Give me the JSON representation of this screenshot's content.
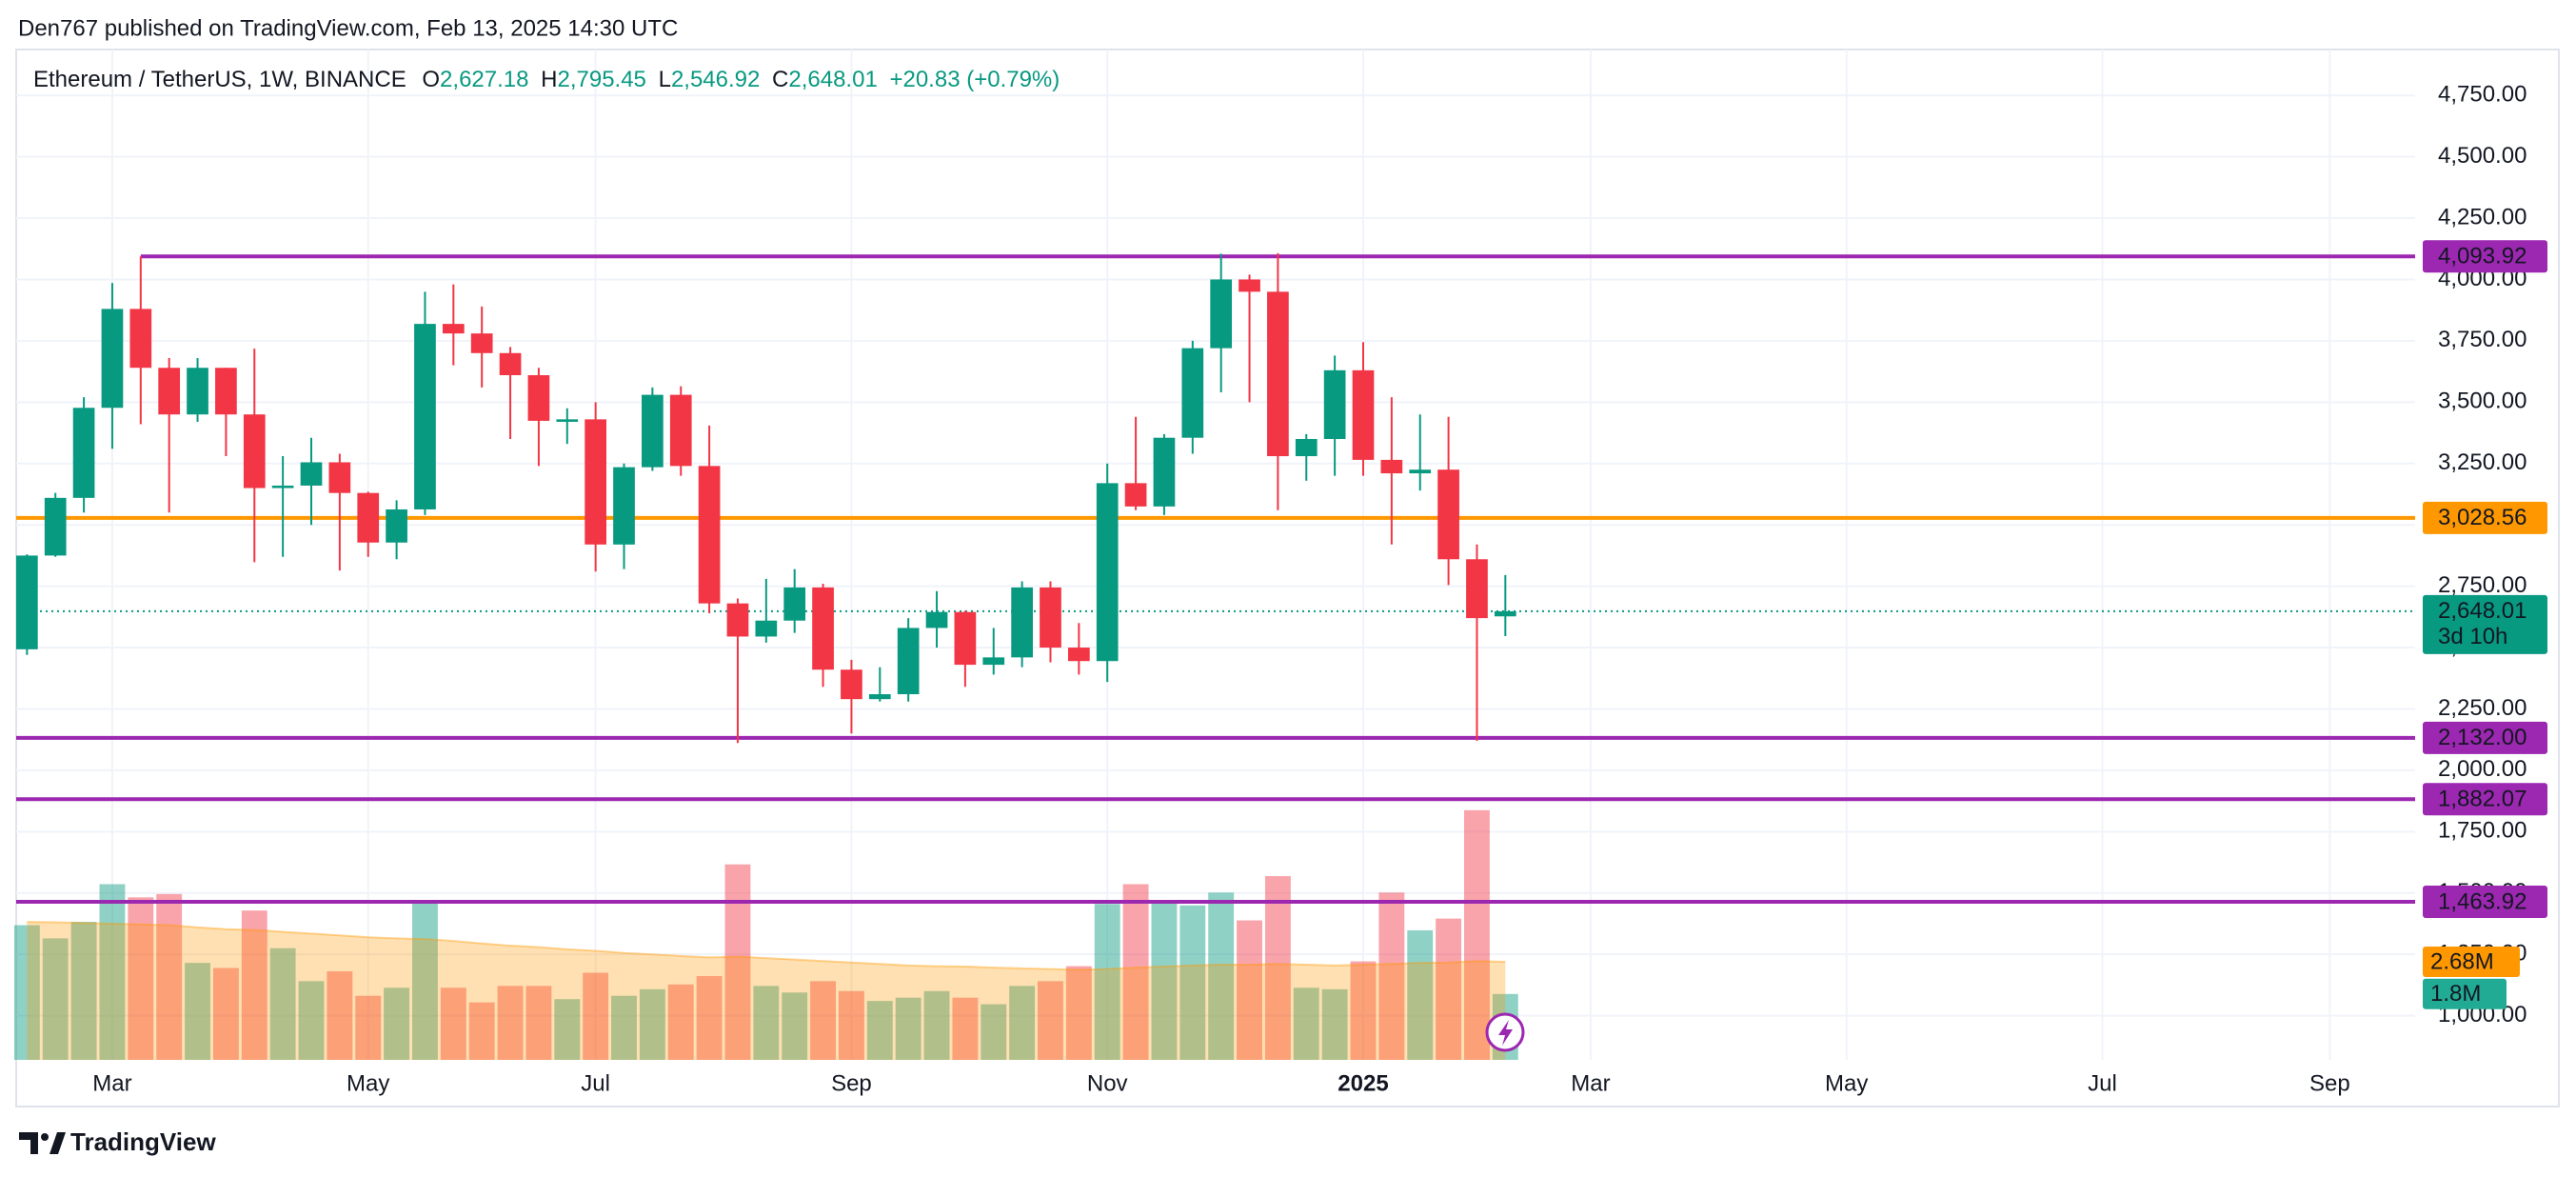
{
  "header": {
    "publisher": "Den767 published on TradingView.com, Feb 13, 2025 14:30 UTC"
  },
  "footer": {
    "brand": "TradingView"
  },
  "chart_data": {
    "type": "candlestick",
    "title": "Ethereum / TetherUS, 1W, BINANCE",
    "ohlc_legend": [
      {
        "key": "O",
        "value": "2,627.18"
      },
      {
        "key": "H",
        "value": "2,795.45"
      },
      {
        "key": "L",
        "value": "2,546.92"
      },
      {
        "key": "C",
        "value": "2,648.01"
      }
    ],
    "change": "+20.83 (+0.79%)",
    "up_color": "#089981",
    "down_color": "#f23645",
    "ohlc": {
      "open": [
        2493,
        2875,
        3110,
        3477,
        3880,
        3640,
        3450,
        3640,
        3450,
        3150,
        3160,
        3255,
        3130,
        2928,
        3063,
        3819,
        3780,
        3700,
        3610,
        3420,
        3430,
        2920,
        3235,
        3530,
        3240,
        2680,
        2545,
        2610,
        2745,
        2410,
        2290,
        2310,
        2580,
        2645,
        2430,
        2460,
        2745,
        2500,
        2445,
        3170,
        3075,
        3355,
        3720,
        4000,
        3950,
        3280,
        3350,
        3630,
        3265,
        3210,
        3225,
        2860,
        2627.18
      ],
      "high": [
        2880,
        3130,
        3520,
        3986,
        4093.92,
        3680,
        3680,
        3640,
        3718,
        3280,
        3355,
        3290,
        3135,
        3100,
        3950,
        3980,
        3890,
        3725,
        3640,
        3475,
        3500,
        3250,
        3560,
        3565,
        3405,
        2700,
        2780,
        2820,
        2760,
        2450,
        2420,
        2620,
        2730,
        2650,
        2580,
        2770,
        2770,
        2600,
        3250,
        3440,
        3370,
        3750,
        4105,
        4020,
        4107,
        3370,
        3690,
        3745,
        3520,
        3450,
        3440,
        2920,
        2795.45
      ],
      "low": [
        2470,
        2870,
        3050,
        3310,
        3410,
        3050,
        3420,
        3280,
        2848,
        2870,
        3000,
        2814,
        2870,
        2860,
        3040,
        3650,
        3560,
        3350,
        3240,
        3330,
        2810,
        2820,
        3220,
        3200,
        2640,
        2111,
        2520,
        2560,
        2340,
        2150,
        2280,
        2280,
        2500,
        2340,
        2390,
        2420,
        2440,
        2390,
        2360,
        3060,
        3040,
        3290,
        3540,
        3500,
        3060,
        3180,
        3200,
        3200,
        2920,
        3140,
        2755,
        2120,
        2546.92
      ],
      "close": [
        2875,
        3110,
        3477,
        3880,
        3640,
        3450,
        3640,
        3450,
        3150,
        3160,
        3255,
        3130,
        2928,
        3063,
        3819,
        3780,
        3700,
        3610,
        3424,
        3430,
        2920,
        3235,
        3530,
        3240,
        2680,
        2545,
        2610,
        2745,
        2410,
        2290,
        2310,
        2580,
        2645,
        2430,
        2460,
        2745,
        2500,
        2445,
        3170,
        3075,
        3355,
        3720,
        4000,
        3950,
        3280,
        3350,
        3630,
        3265,
        3210,
        3225,
        2860,
        2620,
        2648.01
      ]
    },
    "xlim": [
      -0.38,
      84
    ],
    "xticks": [
      {
        "value": 3,
        "label": "Mar"
      },
      {
        "value": 12,
        "label": "May"
      },
      {
        "value": 20,
        "label": "Jul"
      },
      {
        "value": 29,
        "label": "Sep"
      },
      {
        "value": 38,
        "label": "Nov"
      },
      {
        "value": 47,
        "label": "2025",
        "bold": true
      },
      {
        "value": 55,
        "label": "Mar"
      },
      {
        "value": 64,
        "label": "May"
      },
      {
        "value": 73,
        "label": "Jul"
      },
      {
        "value": 81,
        "label": "Sep"
      }
    ],
    "ylim": [
      820,
      4937
    ],
    "yticks": [
      {
        "value": 1000,
        "label": "1,000.00"
      },
      {
        "value": 1250,
        "label": "1,250.00"
      },
      {
        "value": 1500,
        "label": "1,500.00"
      },
      {
        "value": 1750,
        "label": "1,750.00"
      },
      {
        "value": 2000,
        "label": "2,000.00"
      },
      {
        "value": 2250,
        "label": "2,250.00"
      },
      {
        "value": 2500,
        "label": "2,500.00"
      },
      {
        "value": 2750,
        "label": "2,750.00"
      },
      {
        "value": 3000,
        "label": "3,000.00"
      },
      {
        "value": 3250,
        "label": "3,250.00"
      },
      {
        "value": 3500,
        "label": "3,500.00"
      },
      {
        "value": 3750,
        "label": "3,750.00"
      },
      {
        "value": 4000,
        "label": "4,000.00"
      },
      {
        "value": 4250,
        "label": "4,250.00"
      },
      {
        "value": 4500,
        "label": "4,500.00"
      },
      {
        "value": 4750,
        "label": "4,750.00"
      }
    ],
    "grid": true,
    "levels": [
      {
        "value": 4093.92,
        "label": "4,093.92",
        "color": "#9c27b0",
        "x_start": 4
      },
      {
        "value": 3028.56,
        "label": "3,028.56",
        "color": "#ff9800"
      },
      {
        "value": 2132.0,
        "label": "2,132.00",
        "color": "#9c27b0"
      },
      {
        "value": 1882.07,
        "label": "1,882.07",
        "color": "#9c27b0"
      },
      {
        "value": 1463.92,
        "label": "1,463.92",
        "color": "#9c27b0"
      }
    ],
    "last_price": {
      "value": 2648.01,
      "label": "2,648.01",
      "countdown": "3d 10h"
    },
    "volume": {
      "ylim": [
        0,
        27.6
      ],
      "values": [
        3.68,
        3.32,
        3.77,
        4.8,
        4.44,
        4.53,
        2.65,
        2.51,
        4.08,
        3.05,
        2.15,
        2.42,
        1.75,
        1.97,
        4.35,
        1.97,
        1.57,
        2.02,
        2.02,
        1.66,
        2.38,
        1.75,
        1.93,
        2.06,
        2.29,
        5.34,
        2.02,
        1.84,
        2.15,
        1.88,
        1.61,
        1.7,
        1.88,
        1.7,
        1.52,
        2.02,
        2.15,
        2.56,
        4.26,
        4.8,
        4.35,
        4.22,
        4.57,
        3.81,
        5.02,
        1.97,
        1.93,
        2.69,
        4.57,
        3.54,
        3.86,
        6.82,
        1.8
      ],
      "last_label": "1.8M",
      "ma": [
        3.77,
        3.76,
        3.74,
        3.72,
        3.7,
        3.68,
        3.62,
        3.57,
        3.55,
        3.5,
        3.45,
        3.4,
        3.35,
        3.32,
        3.3,
        3.25,
        3.18,
        3.12,
        3.08,
        3.02,
        2.98,
        2.92,
        2.88,
        2.84,
        2.8,
        2.82,
        2.78,
        2.74,
        2.7,
        2.66,
        2.62,
        2.58,
        2.56,
        2.55,
        2.52,
        2.5,
        2.48,
        2.46,
        2.48,
        2.52,
        2.55,
        2.58,
        2.6,
        2.6,
        2.62,
        2.6,
        2.58,
        2.6,
        2.62,
        2.65,
        2.66,
        2.7,
        2.68
      ],
      "ma_last_label": "2.68M",
      "ma_color": "#ff9800"
    }
  }
}
